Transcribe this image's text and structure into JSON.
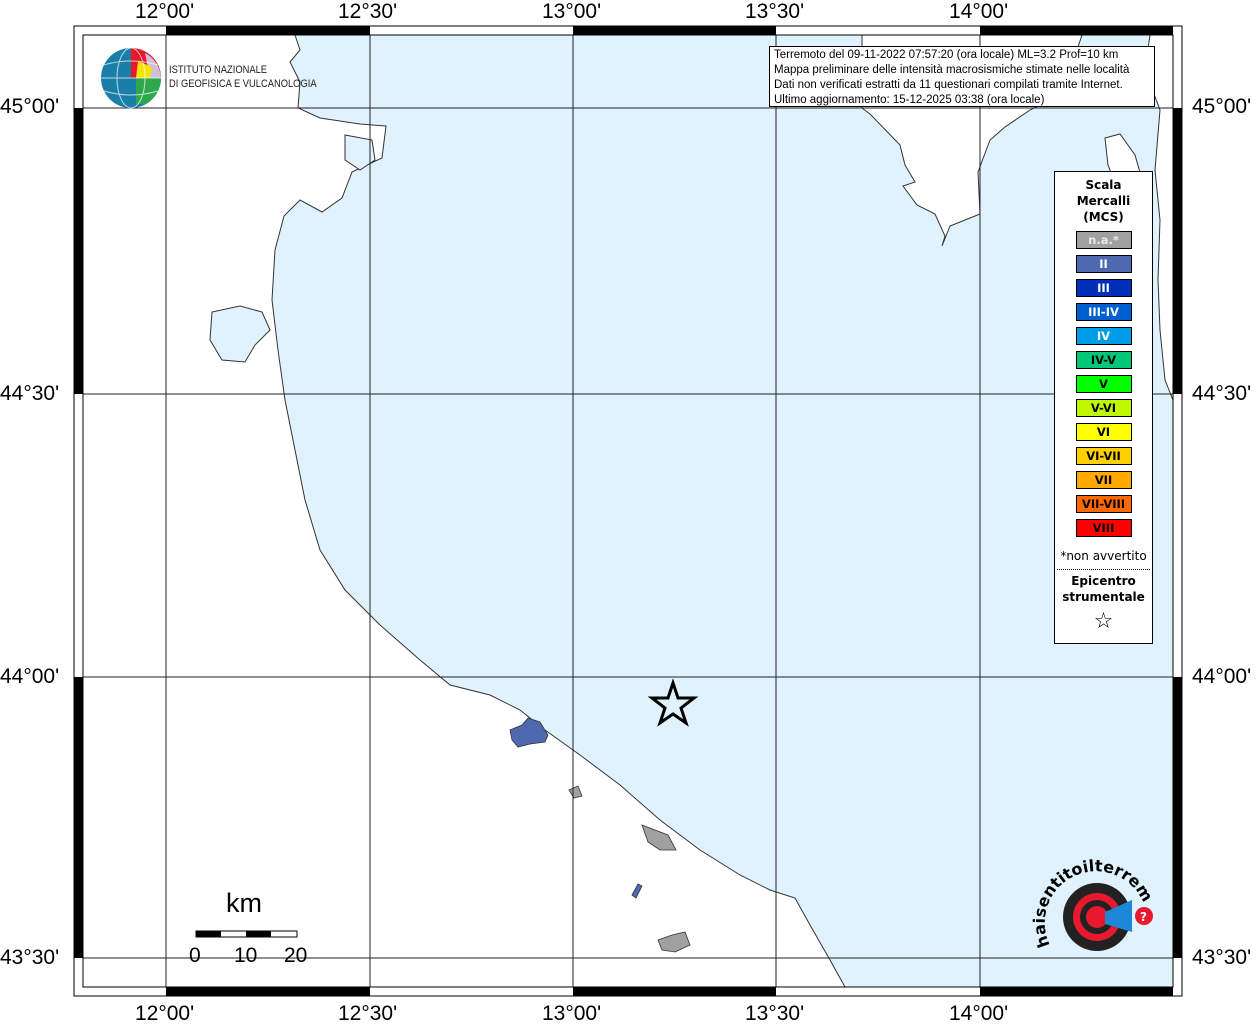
{
  "map": {
    "lon_ticks": [
      "12°00'",
      "12°30'",
      "13°00'",
      "13°30'",
      "14°00'"
    ],
    "lat_ticks": [
      "45°00'",
      "44°30'",
      "44°00'",
      "43°30'"
    ],
    "colors": {
      "sea": "#e0f2fd",
      "land": "#ffffff",
      "grid": "#000000",
      "intensity_II_locality": "#4f69b0",
      "na_locality": "#a0a0a0"
    }
  },
  "info": {
    "line1": "Terremoto del 09-11-2022 07:57:20 (ora locale) ML=3.2 Prof=10 km",
    "line2": "Mappa preliminare delle intensità macrosismiche stimate nelle località",
    "line3": "Dati non verificati estratti da 11 questionari compilati tramite Internet.",
    "line4": "Ultimo aggiornamento: 15-12-2025 03:38 (ora locale)"
  },
  "legend": {
    "title_lines": [
      "Scala",
      "Mercalli",
      "(MCS)"
    ],
    "items": [
      {
        "label": "n.a.*",
        "color": "#a0a0a0",
        "text_color": "#e8e8e8"
      },
      {
        "label": "II",
        "color": "#4f69b0",
        "text_color": "#ffffff"
      },
      {
        "label": "III",
        "color": "#0030b8",
        "text_color": "#ffffff"
      },
      {
        "label": "III-IV",
        "color": "#0060d0",
        "text_color": "#ffffff"
      },
      {
        "label": "IV",
        "color": "#009ee8",
        "text_color": "#ffffff"
      },
      {
        "label": "IV-V",
        "color": "#00c878",
        "text_color": "#000000"
      },
      {
        "label": "V",
        "color": "#00ff00",
        "text_color": "#000000"
      },
      {
        "label": "V-VI",
        "color": "#c0f800",
        "text_color": "#000000"
      },
      {
        "label": "VI",
        "color": "#ffff00",
        "text_color": "#000000"
      },
      {
        "label": "VI-VII",
        "color": "#ffd000",
        "text_color": "#000000"
      },
      {
        "label": "VII",
        "color": "#ffa800",
        "text_color": "#000000"
      },
      {
        "label": "VII-VIII",
        "color": "#ff6800",
        "text_color": "#000000"
      },
      {
        "label": "VIII",
        "color": "#ff0000",
        "text_color": "#000000"
      }
    ],
    "note": "*non avvertito",
    "epicenter_lines": [
      "Epicentro",
      "strumentale"
    ],
    "epicenter_icon": "star-outline-icon"
  },
  "scale_bar": {
    "unit": "km",
    "labels": [
      "0",
      "10",
      "20"
    ]
  },
  "logos": {
    "ingv": [
      "ISTITUTO NAZIONALE",
      "DI GEOFISICA E VULCANOLOGIA"
    ],
    "hsit": "www.haisentitoilterremoto.it"
  }
}
